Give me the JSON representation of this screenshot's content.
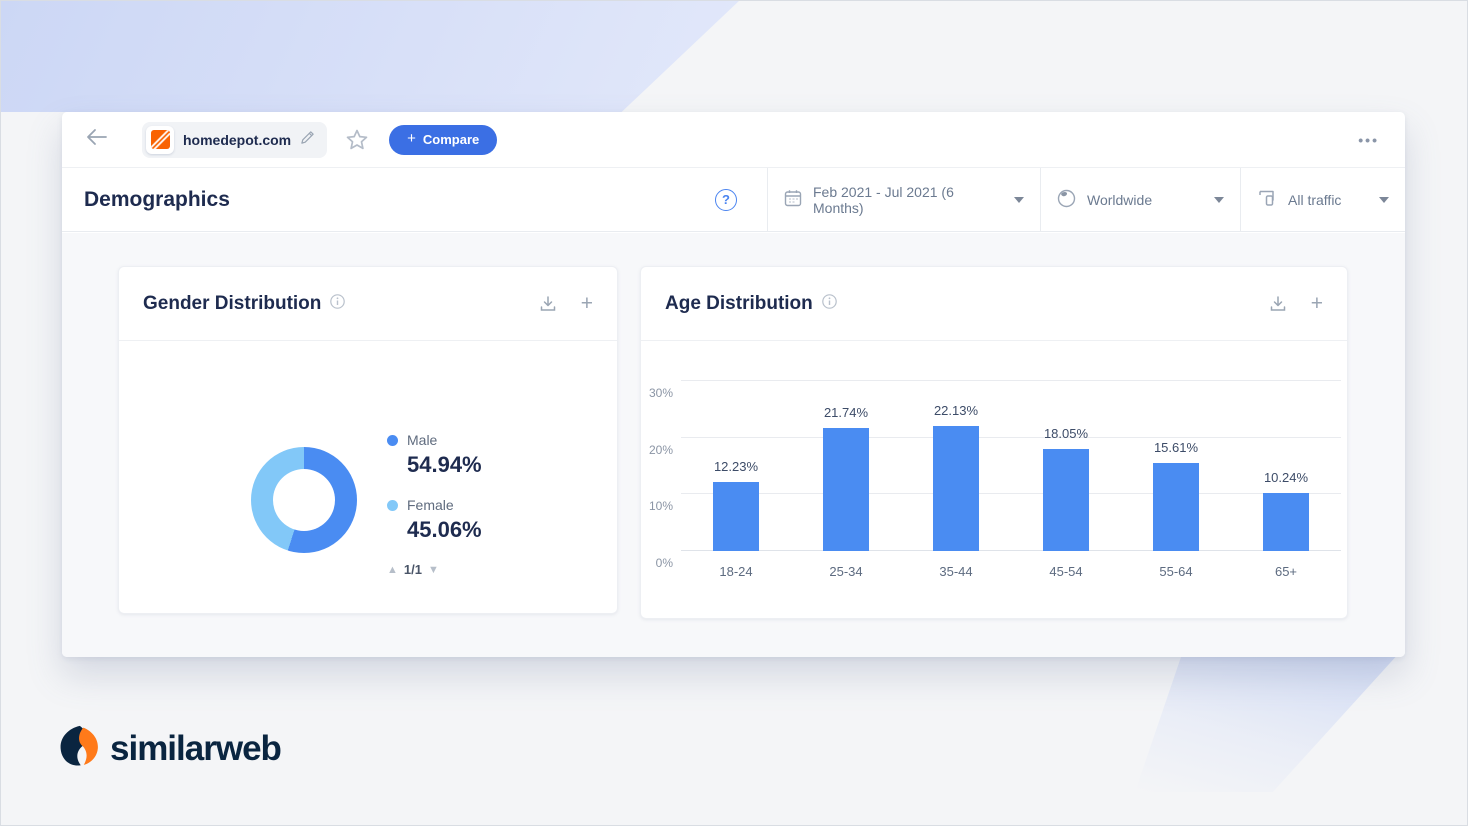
{
  "topbar": {
    "domain": "homedepot.com",
    "compare_label": "Compare",
    "menu_dots": "•••"
  },
  "header": {
    "title": "Demographics",
    "help_glyph": "?",
    "filters": {
      "date_range": "Feb 2021 - Jul 2021 (6 Months)",
      "geo": "Worldwide",
      "traffic": "All traffic"
    }
  },
  "icons": {
    "plus": "+",
    "up_triangle": "▲",
    "down_triangle": "▼"
  },
  "cards": {
    "gender": {
      "title": "Gender Distribution",
      "pagination": "1/1"
    },
    "age": {
      "title": "Age Distribution"
    }
  },
  "chart_data": [
    {
      "type": "pie",
      "subtype": "donut",
      "title": "Gender Distribution",
      "series": [
        {
          "name": "Male",
          "value": 54.94,
          "display": "54.94%",
          "color": "#4a8cf2"
        },
        {
          "name": "Female",
          "value": 45.06,
          "display": "45.06%",
          "color": "#82c8f8"
        }
      ],
      "start_angle_deg": 0,
      "legend_position": "right"
    },
    {
      "type": "bar",
      "title": "Age Distribution",
      "categories": [
        "18-24",
        "25-34",
        "35-44",
        "45-54",
        "55-64",
        "65+"
      ],
      "values": [
        12.23,
        21.74,
        22.13,
        18.05,
        15.61,
        10.24
      ],
      "unit": "%",
      "xlabel": "",
      "ylabel": "",
      "ylim": [
        0,
        30
      ],
      "yticks": [
        0,
        10,
        20,
        30
      ],
      "ytick_labels": [
        "0%",
        "10%",
        "20%",
        "30%"
      ],
      "grid": true,
      "bar_color": "#4a8cf2"
    }
  ],
  "footer": {
    "logo_text": "similarweb"
  },
  "colors": {
    "accent_blue": "#3b6fe4",
    "bar_blue": "#4a8cf2",
    "light_blue": "#82c8f8",
    "navy_text": "#1e2b4f",
    "brand_navy": "#0a2540",
    "brand_orange": "#f96302"
  }
}
